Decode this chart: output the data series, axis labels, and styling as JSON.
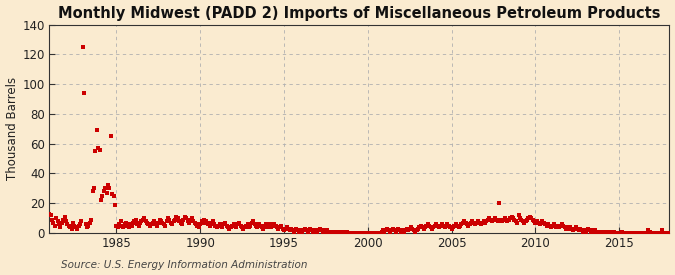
{
  "title": "Monthly Midwest (PADD 2) Imports of Miscellaneous Petroleum Products",
  "ylabel": "Thousand Barrels",
  "source_text": "Source: U.S. Energy Information Administration",
  "background_color": "#faebd0",
  "plot_bg_color": "#faebd0",
  "dot_color": "#cc0000",
  "xlim": [
    1981.0,
    2018.0
  ],
  "ylim": [
    0,
    140
  ],
  "yticks": [
    0,
    20,
    40,
    60,
    80,
    100,
    120,
    140
  ],
  "xticks": [
    1985,
    1990,
    1995,
    2000,
    2005,
    2010,
    2015
  ],
  "dot_size": 5,
  "title_fontsize": 10.5,
  "title_fontweight": "bold",
  "tick_fontsize": 8.5,
  "ylabel_fontsize": 8.5,
  "source_fontsize": 7.5,
  "data": [
    [
      1981.0,
      13
    ],
    [
      1981.083,
      12
    ],
    [
      1981.167,
      9
    ],
    [
      1981.25,
      7
    ],
    [
      1981.333,
      5
    ],
    [
      1981.417,
      10
    ],
    [
      1981.5,
      8
    ],
    [
      1981.583,
      6
    ],
    [
      1981.667,
      4
    ],
    [
      1981.75,
      7
    ],
    [
      1981.833,
      9
    ],
    [
      1981.917,
      11
    ],
    [
      1982.0,
      8
    ],
    [
      1982.083,
      6
    ],
    [
      1982.167,
      5
    ],
    [
      1982.25,
      4
    ],
    [
      1982.333,
      3
    ],
    [
      1982.417,
      7
    ],
    [
      1982.5,
      5
    ],
    [
      1982.583,
      4
    ],
    [
      1982.667,
      3
    ],
    [
      1982.75,
      5
    ],
    [
      1982.833,
      6
    ],
    [
      1982.917,
      8
    ],
    [
      1983.0,
      125
    ],
    [
      1983.083,
      94
    ],
    [
      1983.167,
      6
    ],
    [
      1983.25,
      4
    ],
    [
      1983.333,
      5
    ],
    [
      1983.417,
      7
    ],
    [
      1983.5,
      9
    ],
    [
      1983.583,
      28
    ],
    [
      1983.667,
      30
    ],
    [
      1983.75,
      55
    ],
    [
      1983.833,
      69
    ],
    [
      1983.917,
      57
    ],
    [
      1984.0,
      56
    ],
    [
      1984.083,
      22
    ],
    [
      1984.167,
      25
    ],
    [
      1984.25,
      28
    ],
    [
      1984.333,
      30
    ],
    [
      1984.417,
      27
    ],
    [
      1984.5,
      32
    ],
    [
      1984.583,
      30
    ],
    [
      1984.667,
      65
    ],
    [
      1984.75,
      26
    ],
    [
      1984.833,
      25
    ],
    [
      1984.917,
      19
    ],
    [
      1985.0,
      5
    ],
    [
      1985.083,
      4
    ],
    [
      1985.167,
      6
    ],
    [
      1985.25,
      8
    ],
    [
      1985.333,
      5
    ],
    [
      1985.417,
      4
    ],
    [
      1985.5,
      6
    ],
    [
      1985.583,
      7
    ],
    [
      1985.667,
      5
    ],
    [
      1985.75,
      4
    ],
    [
      1985.833,
      6
    ],
    [
      1985.917,
      5
    ],
    [
      1986.0,
      7
    ],
    [
      1986.083,
      8
    ],
    [
      1986.167,
      9
    ],
    [
      1986.25,
      6
    ],
    [
      1986.333,
      5
    ],
    [
      1986.417,
      7
    ],
    [
      1986.5,
      8
    ],
    [
      1986.583,
      9
    ],
    [
      1986.667,
      10
    ],
    [
      1986.75,
      8
    ],
    [
      1986.833,
      7
    ],
    [
      1986.917,
      6
    ],
    [
      1987.0,
      5
    ],
    [
      1987.083,
      6
    ],
    [
      1987.167,
      7
    ],
    [
      1987.25,
      8
    ],
    [
      1987.333,
      6
    ],
    [
      1987.417,
      5
    ],
    [
      1987.5,
      7
    ],
    [
      1987.583,
      9
    ],
    [
      1987.667,
      8
    ],
    [
      1987.75,
      7
    ],
    [
      1987.833,
      6
    ],
    [
      1987.917,
      5
    ],
    [
      1988.0,
      8
    ],
    [
      1988.083,
      10
    ],
    [
      1988.167,
      9
    ],
    [
      1988.25,
      7
    ],
    [
      1988.333,
      6
    ],
    [
      1988.417,
      8
    ],
    [
      1988.5,
      9
    ],
    [
      1988.583,
      11
    ],
    [
      1988.667,
      10
    ],
    [
      1988.75,
      8
    ],
    [
      1988.833,
      7
    ],
    [
      1988.917,
      6
    ],
    [
      1989.0,
      9
    ],
    [
      1989.083,
      11
    ],
    [
      1989.167,
      10
    ],
    [
      1989.25,
      8
    ],
    [
      1989.333,
      7
    ],
    [
      1989.417,
      9
    ],
    [
      1989.5,
      10
    ],
    [
      1989.583,
      8
    ],
    [
      1989.667,
      7
    ],
    [
      1989.75,
      6
    ],
    [
      1989.833,
      5
    ],
    [
      1989.917,
      4
    ],
    [
      1990.0,
      6
    ],
    [
      1990.083,
      8
    ],
    [
      1990.167,
      7
    ],
    [
      1990.25,
      9
    ],
    [
      1990.333,
      8
    ],
    [
      1990.417,
      7
    ],
    [
      1990.5,
      6
    ],
    [
      1990.583,
      5
    ],
    [
      1990.667,
      7
    ],
    [
      1990.75,
      8
    ],
    [
      1990.833,
      6
    ],
    [
      1990.917,
      5
    ],
    [
      1991.0,
      4
    ],
    [
      1991.083,
      5
    ],
    [
      1991.167,
      6
    ],
    [
      1991.25,
      5
    ],
    [
      1991.333,
      4
    ],
    [
      1991.417,
      6
    ],
    [
      1991.5,
      7
    ],
    [
      1991.583,
      5
    ],
    [
      1991.667,
      4
    ],
    [
      1991.75,
      3
    ],
    [
      1991.833,
      4
    ],
    [
      1991.917,
      5
    ],
    [
      1992.0,
      6
    ],
    [
      1992.083,
      5
    ],
    [
      1992.167,
      4
    ],
    [
      1992.25,
      6
    ],
    [
      1992.333,
      7
    ],
    [
      1992.417,
      5
    ],
    [
      1992.5,
      4
    ],
    [
      1992.583,
      3
    ],
    [
      1992.667,
      4
    ],
    [
      1992.75,
      5
    ],
    [
      1992.833,
      6
    ],
    [
      1992.917,
      4
    ],
    [
      1993.0,
      5
    ],
    [
      1993.083,
      7
    ],
    [
      1993.167,
      8
    ],
    [
      1993.25,
      6
    ],
    [
      1993.333,
      5
    ],
    [
      1993.417,
      4
    ],
    [
      1993.5,
      6
    ],
    [
      1993.583,
      5
    ],
    [
      1993.667,
      4
    ],
    [
      1993.75,
      3
    ],
    [
      1993.833,
      5
    ],
    [
      1993.917,
      6
    ],
    [
      1994.0,
      4
    ],
    [
      1994.083,
      5
    ],
    [
      1994.167,
      6
    ],
    [
      1994.25,
      4
    ],
    [
      1994.333,
      5
    ],
    [
      1994.417,
      6
    ],
    [
      1994.5,
      5
    ],
    [
      1994.583,
      4
    ],
    [
      1994.667,
      3
    ],
    [
      1994.75,
      4
    ],
    [
      1994.833,
      5
    ],
    [
      1994.917,
      3
    ],
    [
      1995.0,
      2
    ],
    [
      1995.083,
      3
    ],
    [
      1995.167,
      4
    ],
    [
      1995.25,
      3
    ],
    [
      1995.333,
      2
    ],
    [
      1995.417,
      3
    ],
    [
      1995.5,
      2
    ],
    [
      1995.583,
      1
    ],
    [
      1995.667,
      2
    ],
    [
      1995.75,
      3
    ],
    [
      1995.833,
      2
    ],
    [
      1995.917,
      1
    ],
    [
      1996.0,
      2
    ],
    [
      1996.083,
      1
    ],
    [
      1996.167,
      2
    ],
    [
      1996.25,
      3
    ],
    [
      1996.333,
      2
    ],
    [
      1996.417,
      1
    ],
    [
      1996.5,
      2
    ],
    [
      1996.583,
      3
    ],
    [
      1996.667,
      2
    ],
    [
      1996.75,
      1
    ],
    [
      1996.833,
      2
    ],
    [
      1996.917,
      1
    ],
    [
      1997.0,
      1
    ],
    [
      1997.083,
      2
    ],
    [
      1997.167,
      3
    ],
    [
      1997.25,
      2
    ],
    [
      1997.333,
      1
    ],
    [
      1997.417,
      2
    ],
    [
      1997.5,
      1
    ],
    [
      1997.583,
      2
    ],
    [
      1997.667,
      1
    ],
    [
      1997.75,
      1
    ],
    [
      1997.833,
      0
    ],
    [
      1997.917,
      1
    ],
    [
      1998.0,
      0
    ],
    [
      1998.083,
      1
    ],
    [
      1998.167,
      0
    ],
    [
      1998.25,
      1
    ],
    [
      1998.333,
      0
    ],
    [
      1998.417,
      1
    ],
    [
      1998.5,
      0
    ],
    [
      1998.583,
      1
    ],
    [
      1998.667,
      0
    ],
    [
      1998.75,
      1
    ],
    [
      1998.833,
      0
    ],
    [
      1998.917,
      0
    ],
    [
      1999.0,
      0
    ],
    [
      1999.083,
      0
    ],
    [
      1999.167,
      0
    ],
    [
      1999.25,
      0
    ],
    [
      1999.333,
      0
    ],
    [
      1999.417,
      0
    ],
    [
      1999.5,
      0
    ],
    [
      1999.583,
      0
    ],
    [
      1999.667,
      0
    ],
    [
      1999.75,
      0
    ],
    [
      1999.833,
      0
    ],
    [
      1999.917,
      0
    ],
    [
      2000.0,
      0
    ],
    [
      2000.083,
      0
    ],
    [
      2000.167,
      0
    ],
    [
      2000.25,
      0
    ],
    [
      2000.333,
      0
    ],
    [
      2000.417,
      0
    ],
    [
      2000.5,
      0
    ],
    [
      2000.583,
      0
    ],
    [
      2000.667,
      0
    ],
    [
      2000.75,
      0
    ],
    [
      2000.833,
      1
    ],
    [
      2000.917,
      2
    ],
    [
      2001.0,
      1
    ],
    [
      2001.083,
      2
    ],
    [
      2001.167,
      3
    ],
    [
      2001.25,
      2
    ],
    [
      2001.333,
      1
    ],
    [
      2001.417,
      2
    ],
    [
      2001.5,
      3
    ],
    [
      2001.583,
      2
    ],
    [
      2001.667,
      1
    ],
    [
      2001.75,
      2
    ],
    [
      2001.833,
      3
    ],
    [
      2001.917,
      2
    ],
    [
      2002.0,
      1
    ],
    [
      2002.083,
      2
    ],
    [
      2002.167,
      1
    ],
    [
      2002.25,
      2
    ],
    [
      2002.333,
      3
    ],
    [
      2002.417,
      2
    ],
    [
      2002.5,
      3
    ],
    [
      2002.583,
      4
    ],
    [
      2002.667,
      3
    ],
    [
      2002.75,
      2
    ],
    [
      2002.833,
      1
    ],
    [
      2002.917,
      2
    ],
    [
      2003.0,
      3
    ],
    [
      2003.083,
      4
    ],
    [
      2003.167,
      5
    ],
    [
      2003.25,
      4
    ],
    [
      2003.333,
      3
    ],
    [
      2003.417,
      4
    ],
    [
      2003.5,
      5
    ],
    [
      2003.583,
      6
    ],
    [
      2003.667,
      5
    ],
    [
      2003.75,
      4
    ],
    [
      2003.833,
      3
    ],
    [
      2003.917,
      4
    ],
    [
      2004.0,
      5
    ],
    [
      2004.083,
      6
    ],
    [
      2004.167,
      5
    ],
    [
      2004.25,
      4
    ],
    [
      2004.333,
      5
    ],
    [
      2004.417,
      6
    ],
    [
      2004.5,
      5
    ],
    [
      2004.583,
      4
    ],
    [
      2004.667,
      5
    ],
    [
      2004.75,
      6
    ],
    [
      2004.833,
      5
    ],
    [
      2004.917,
      4
    ],
    [
      2005.0,
      3
    ],
    [
      2005.083,
      4
    ],
    [
      2005.167,
      5
    ],
    [
      2005.25,
      6
    ],
    [
      2005.333,
      5
    ],
    [
      2005.417,
      4
    ],
    [
      2005.5,
      5
    ],
    [
      2005.583,
      6
    ],
    [
      2005.667,
      7
    ],
    [
      2005.75,
      8
    ],
    [
      2005.833,
      7
    ],
    [
      2005.917,
      6
    ],
    [
      2006.0,
      5
    ],
    [
      2006.083,
      6
    ],
    [
      2006.167,
      7
    ],
    [
      2006.25,
      8
    ],
    [
      2006.333,
      7
    ],
    [
      2006.417,
      6
    ],
    [
      2006.5,
      7
    ],
    [
      2006.583,
      8
    ],
    [
      2006.667,
      7
    ],
    [
      2006.75,
      6
    ],
    [
      2006.833,
      7
    ],
    [
      2006.917,
      8
    ],
    [
      2007.0,
      7
    ],
    [
      2007.083,
      8
    ],
    [
      2007.167,
      9
    ],
    [
      2007.25,
      10
    ],
    [
      2007.333,
      9
    ],
    [
      2007.417,
      8
    ],
    [
      2007.5,
      9
    ],
    [
      2007.583,
      10
    ],
    [
      2007.667,
      9
    ],
    [
      2007.75,
      8
    ],
    [
      2007.833,
      20
    ],
    [
      2007.917,
      9
    ],
    [
      2008.0,
      8
    ],
    [
      2008.083,
      9
    ],
    [
      2008.167,
      10
    ],
    [
      2008.25,
      9
    ],
    [
      2008.333,
      8
    ],
    [
      2008.417,
      9
    ],
    [
      2008.5,
      10
    ],
    [
      2008.583,
      11
    ],
    [
      2008.667,
      10
    ],
    [
      2008.75,
      9
    ],
    [
      2008.833,
      8
    ],
    [
      2008.917,
      7
    ],
    [
      2009.0,
      12
    ],
    [
      2009.083,
      10
    ],
    [
      2009.167,
      9
    ],
    [
      2009.25,
      8
    ],
    [
      2009.333,
      7
    ],
    [
      2009.417,
      8
    ],
    [
      2009.5,
      9
    ],
    [
      2009.583,
      10
    ],
    [
      2009.667,
      11
    ],
    [
      2009.75,
      10
    ],
    [
      2009.833,
      9
    ],
    [
      2009.917,
      8
    ],
    [
      2010.0,
      7
    ],
    [
      2010.083,
      8
    ],
    [
      2010.167,
      7
    ],
    [
      2010.25,
      6
    ],
    [
      2010.333,
      7
    ],
    [
      2010.417,
      8
    ],
    [
      2010.5,
      7
    ],
    [
      2010.583,
      6
    ],
    [
      2010.667,
      5
    ],
    [
      2010.75,
      6
    ],
    [
      2010.833,
      5
    ],
    [
      2010.917,
      4
    ],
    [
      2011.0,
      5
    ],
    [
      2011.083,
      6
    ],
    [
      2011.167,
      5
    ],
    [
      2011.25,
      4
    ],
    [
      2011.333,
      5
    ],
    [
      2011.417,
      4
    ],
    [
      2011.5,
      5
    ],
    [
      2011.583,
      6
    ],
    [
      2011.667,
      5
    ],
    [
      2011.75,
      4
    ],
    [
      2011.833,
      3
    ],
    [
      2011.917,
      4
    ],
    [
      2012.0,
      3
    ],
    [
      2012.083,
      4
    ],
    [
      2012.167,
      3
    ],
    [
      2012.25,
      2
    ],
    [
      2012.333,
      3
    ],
    [
      2012.417,
      4
    ],
    [
      2012.5,
      3
    ],
    [
      2012.583,
      2
    ],
    [
      2012.667,
      3
    ],
    [
      2012.75,
      2
    ],
    [
      2012.833,
      1
    ],
    [
      2012.917,
      2
    ],
    [
      2013.0,
      1
    ],
    [
      2013.083,
      2
    ],
    [
      2013.167,
      3
    ],
    [
      2013.25,
      2
    ],
    [
      2013.333,
      1
    ],
    [
      2013.417,
      2
    ],
    [
      2013.5,
      1
    ],
    [
      2013.583,
      2
    ],
    [
      2013.667,
      1
    ],
    [
      2013.75,
      0
    ],
    [
      2013.833,
      1
    ],
    [
      2013.917,
      0
    ],
    [
      2014.0,
      1
    ],
    [
      2014.083,
      0
    ],
    [
      2014.167,
      1
    ],
    [
      2014.25,
      0
    ],
    [
      2014.333,
      1
    ],
    [
      2014.417,
      0
    ],
    [
      2014.5,
      1
    ],
    [
      2014.583,
      0
    ],
    [
      2014.667,
      1
    ],
    [
      2014.75,
      0
    ],
    [
      2014.833,
      0
    ],
    [
      2014.917,
      0
    ],
    [
      2015.0,
      0
    ],
    [
      2015.083,
      0
    ],
    [
      2015.167,
      1
    ],
    [
      2015.25,
      0
    ],
    [
      2015.333,
      0
    ],
    [
      2015.417,
      0
    ],
    [
      2015.5,
      0
    ],
    [
      2015.583,
      0
    ],
    [
      2015.667,
      0
    ],
    [
      2015.75,
      0
    ],
    [
      2015.833,
      0
    ],
    [
      2015.917,
      0
    ],
    [
      2016.0,
      0
    ],
    [
      2016.083,
      0
    ],
    [
      2016.167,
      0
    ],
    [
      2016.25,
      0
    ],
    [
      2016.333,
      0
    ],
    [
      2016.417,
      0
    ],
    [
      2016.5,
      0
    ],
    [
      2016.583,
      0
    ],
    [
      2016.667,
      0
    ],
    [
      2016.75,
      2
    ],
    [
      2016.833,
      1
    ],
    [
      2016.917,
      0
    ],
    [
      2017.0,
      0
    ],
    [
      2017.083,
      0
    ],
    [
      2017.167,
      0
    ],
    [
      2017.25,
      0
    ],
    [
      2017.333,
      0
    ],
    [
      2017.417,
      0
    ],
    [
      2017.5,
      0
    ],
    [
      2017.583,
      2
    ],
    [
      2017.667,
      0
    ],
    [
      2017.75,
      0
    ],
    [
      2017.833,
      0
    ],
    [
      2017.917,
      0
    ]
  ]
}
